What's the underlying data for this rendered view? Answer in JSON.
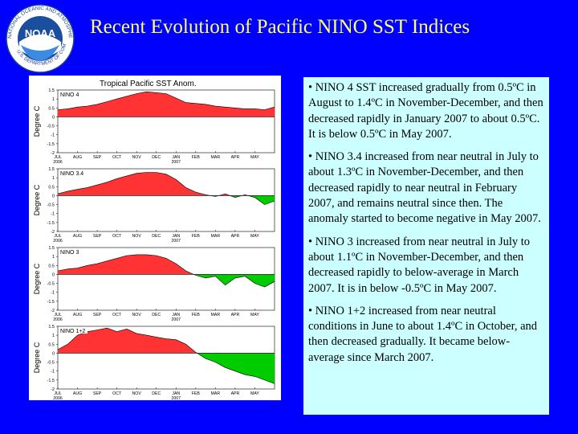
{
  "title": "Recent Evolution of Pacific NINO SST Indices",
  "chart_data": {
    "type": "area",
    "title": "Tropical Pacific SST Anom.",
    "ylabel": "Degree C",
    "months": [
      "JUL",
      "AUG",
      "SEP",
      "OCT",
      "NOV",
      "DEC",
      "JAN",
      "FEB",
      "MAR",
      "APR",
      "MAY"
    ],
    "month_year_labels": {
      "JUL": "2006",
      "JAN": "2007"
    },
    "panels": [
      {
        "name": "NINO 4",
        "ylim": [
          -2,
          1.5
        ],
        "yticks": [
          "1.5",
          "1",
          "0.5",
          "0",
          "-0.5",
          "-1",
          "-1.5",
          "-2"
        ],
        "x": [
          0,
          0.5,
          1,
          1.5,
          2,
          2.5,
          3,
          3.5,
          4,
          4.5,
          5,
          5.5,
          6,
          6.5,
          7,
          7.5,
          8,
          8.5,
          9,
          9.5,
          10,
          10.5,
          11
        ],
        "y": [
          0.4,
          0.45,
          0.55,
          0.6,
          0.7,
          0.85,
          1.0,
          1.15,
          1.3,
          1.4,
          1.35,
          1.3,
          1.05,
          0.8,
          0.75,
          0.7,
          0.6,
          0.55,
          0.5,
          0.45,
          0.45,
          0.4,
          0.55
        ]
      },
      {
        "name": "NINO 3.4",
        "ylim": [
          -2,
          1.5
        ],
        "yticks": [
          "1.5",
          "1",
          "0.5",
          "0",
          "-0.5",
          "-1",
          "-1.5",
          "-2"
        ],
        "x": [
          0,
          0.5,
          1,
          1.5,
          2,
          2.5,
          3,
          3.5,
          4,
          4.5,
          5,
          5.5,
          6,
          6.5,
          7,
          7.5,
          8,
          8.5,
          9,
          9.5,
          10,
          10.5,
          11
        ],
        "y": [
          0.1,
          0.25,
          0.35,
          0.45,
          0.6,
          0.75,
          0.95,
          1.1,
          1.25,
          1.3,
          1.3,
          1.2,
          0.9,
          0.45,
          0.2,
          0.05,
          -0.05,
          0.1,
          -0.1,
          0.05,
          -0.1,
          -0.5,
          -0.3
        ]
      },
      {
        "name": "NINO 3",
        "ylim": [
          -2,
          1.5
        ],
        "yticks": [
          "1.5",
          "1",
          "0.5",
          "0",
          "-0.5",
          "-1",
          "-1.5",
          "-2"
        ],
        "x": [
          0,
          0.5,
          1,
          1.5,
          2,
          2.5,
          3,
          3.5,
          4,
          4.5,
          5,
          5.5,
          6,
          6.5,
          7,
          7.5,
          8,
          8.5,
          9,
          9.5,
          10,
          10.5,
          11
        ],
        "y": [
          0.2,
          0.3,
          0.35,
          0.5,
          0.6,
          0.75,
          0.9,
          1.05,
          1.1,
          1.1,
          1.05,
          0.9,
          0.6,
          0.2,
          -0.05,
          -0.2,
          -0.1,
          -0.6,
          -0.2,
          -0.1,
          -0.5,
          -0.7,
          -0.4
        ]
      },
      {
        "name": "NINO 1+2",
        "ylim": [
          -2,
          1.5
        ],
        "yticks": [
          "1.5",
          "1",
          "0.5",
          "0",
          "-0.5",
          "-1",
          "-1.5",
          "-2"
        ],
        "x": [
          0,
          0.5,
          1,
          1.5,
          2,
          2.5,
          3,
          3.5,
          4,
          4.5,
          5,
          5.5,
          6,
          6.5,
          7,
          7.5,
          8,
          8.5,
          9,
          9.5,
          10,
          10.5,
          11
        ],
        "y": [
          0.2,
          0.5,
          1.0,
          1.2,
          1.3,
          1.4,
          1.2,
          1.35,
          1.1,
          1.0,
          0.9,
          0.8,
          0.75,
          0.5,
          0.05,
          -0.3,
          -0.5,
          -0.8,
          -1.0,
          -1.2,
          -1.3,
          -1.5,
          -1.7
        ]
      }
    ]
  },
  "bullets": [
    "• NINO 4 SST increased gradually from 0.5ºC in August to 1.4ºC in November-December, and then decreased rapidly in January 2007 to about 0.5ºC. It is below 0.5ºC in May 2007.",
    "• NINO 3.4 increased from near neutral in July to about 1.3ºC in November-December, and then decreased rapidly to near neutral in February 2007, and remains neutral since then.  The anomaly started to become negative in May 2007.",
    "• NINO 3 increased from near neutral in July to about 1.1ºC in November-December, and then decreased rapidly to below-average in March 2007. It is in below -0.5ºC in May 2007.",
    "• NINO 1+2 increased from near neutral conditions in June to about 1.4ºC in October, and then decreased gradually. It became below-average since March 2007."
  ],
  "colors": {
    "background": "#0000ff",
    "title": "#ffff66",
    "text_panel": "#ccffff",
    "positive": "#ff3333",
    "negative": "#00cc00"
  }
}
